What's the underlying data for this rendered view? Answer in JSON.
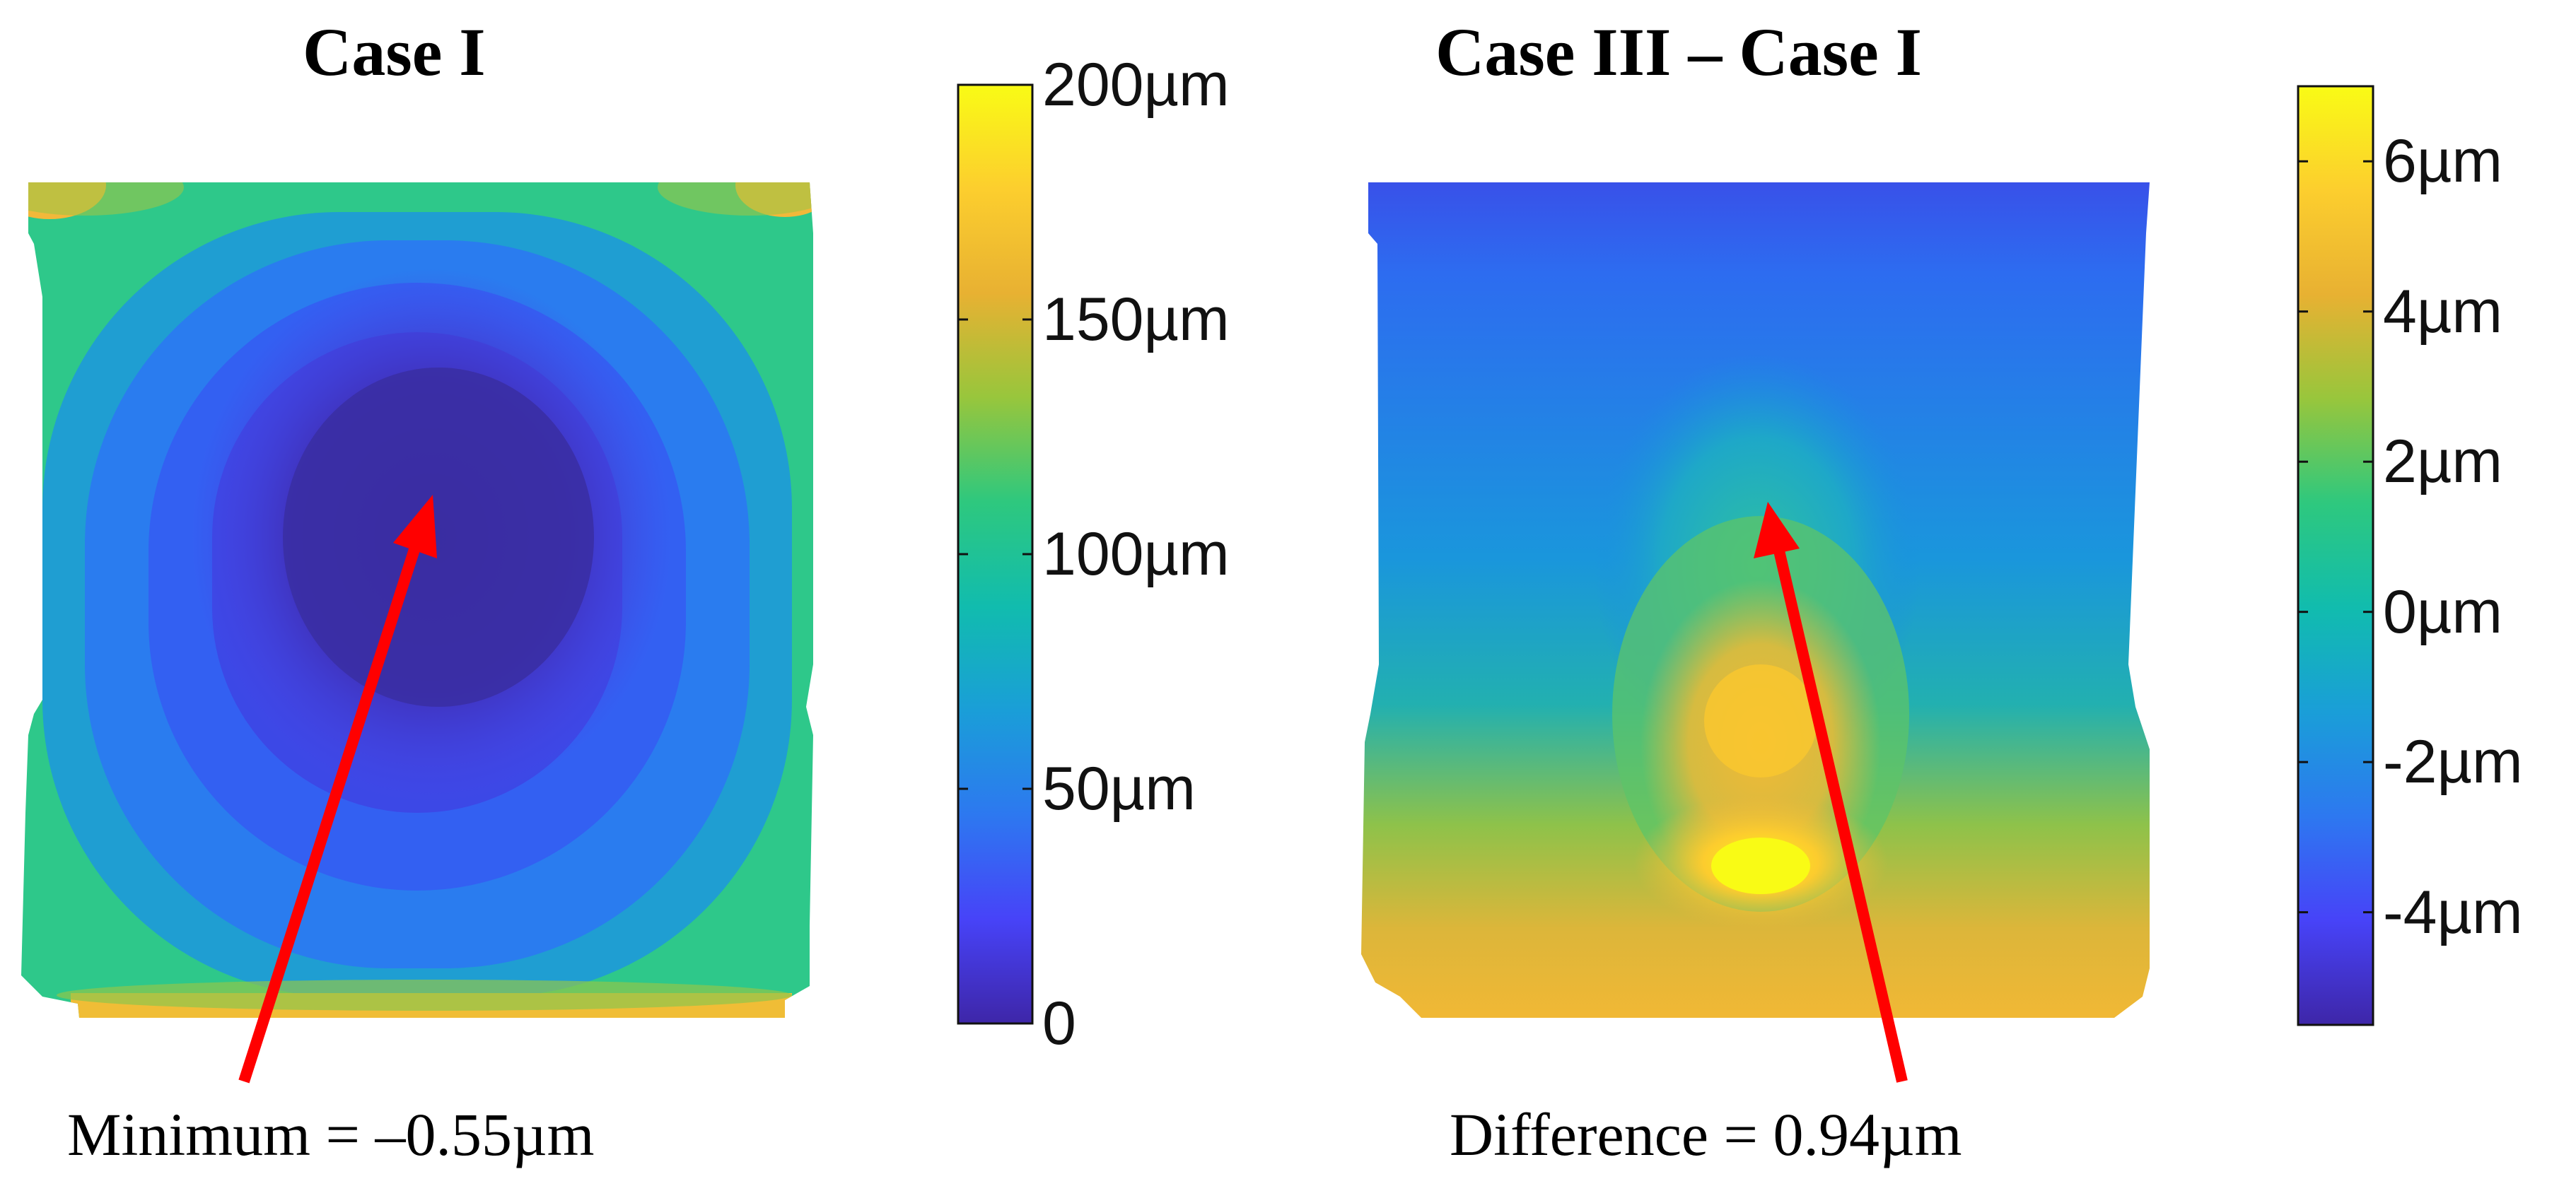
{
  "chart_data": [
    {
      "type": "heatmap",
      "title": "Case I",
      "colorbar": {
        "range": [
          0,
          200
        ],
        "unit": "µm",
        "ticks": [
          {
            "value": 0,
            "label": "0"
          },
          {
            "value": 50,
            "label": "50µm"
          },
          {
            "value": 100,
            "label": "100µm"
          },
          {
            "value": 150,
            "label": "150µm"
          },
          {
            "value": 200,
            "label": "200µm"
          }
        ]
      },
      "annotation": {
        "text": "Minimum = –0.55µm",
        "arrow_color": "#ff0000"
      },
      "description_values": {
        "center_value": 0,
        "top_corner_value": 175,
        "bottom_edge_value": 185,
        "side_edge_value": 110
      }
    },
    {
      "type": "heatmap",
      "title": "Case III – Case I",
      "colorbar": {
        "range": [
          -5.5,
          7
        ],
        "unit": "µm",
        "ticks": [
          {
            "value": -4,
            "label": "-4µm"
          },
          {
            "value": -2,
            "label": "-2µm"
          },
          {
            "value": 0,
            "label": "0µm"
          },
          {
            "value": 2,
            "label": "2µm"
          },
          {
            "value": 4,
            "label": "4µm"
          },
          {
            "value": 6,
            "label": "6µm"
          }
        ]
      },
      "annotation": {
        "text": "Difference = 0.94µm",
        "arrow_color": "#ff0000"
      },
      "description_values": {
        "top_value": -5,
        "bottom_value": 4.5,
        "peak_value": 6.5
      }
    }
  ],
  "colormap": [
    "#3e26a8",
    "#4743f8",
    "#2d78f0",
    "#1a9ed8",
    "#11bcae",
    "#2ec87e",
    "#98c63c",
    "#e8b132",
    "#fcce2e",
    "#f9fb15"
  ]
}
